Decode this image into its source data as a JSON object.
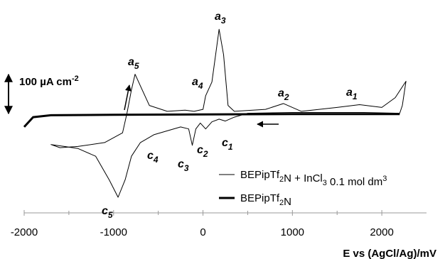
{
  "chart_data": {
    "type": "line",
    "xlabel": "E vs (AgCl/Ag)/mV",
    "xlim": [
      -2000,
      2500
    ],
    "xticks": [
      -2000,
      -1000,
      0,
      1000,
      2000
    ],
    "xminorticks": [
      -1500,
      -500,
      500,
      1500
    ],
    "ylim": [
      -255,
      290
    ],
    "scale_bar": {
      "value": 100,
      "label": "100 µA cm",
      "label_sup": "-2"
    },
    "series": [
      {
        "name": [
          "BEPipTf",
          {
            "sub": "2"
          },
          "N + InCl",
          {
            "sub": "3"
          },
          " 0.1 mol dm",
          {
            "sup": "3"
          }
        ],
        "color": "#000000",
        "width": 1,
        "x": [
          2200,
          1800,
          1000,
          500,
          350,
          250,
          180,
          100,
          30,
          -30,
          -80,
          -120,
          -160,
          -250,
          -400,
          -550,
          -700,
          -800,
          -870,
          -950,
          -1050,
          -1200,
          -1400,
          -1550,
          -1700,
          -1600,
          -1400,
          -1100,
          -900,
          -850,
          -800,
          -760,
          -700,
          -600,
          -400,
          -200,
          -100,
          0,
          30,
          100,
          180,
          230,
          280,
          350,
          700,
          900,
          1100,
          1500,
          1750,
          2000,
          2150,
          2270,
          2230,
          2200
        ],
        "values": [
          0,
          2,
          2,
          0,
          -10,
          -20,
          -15,
          -22,
          -40,
          -25,
          -40,
          -82,
          -40,
          -35,
          -45,
          -55,
          -75,
          -110,
          -170,
          -215,
          -170,
          -110,
          -90,
          -85,
          -80,
          -88,
          -85,
          -75,
          -50,
          0,
          60,
          100,
          70,
          20,
          5,
          8,
          5,
          10,
          45,
          80,
          215,
          150,
          20,
          5,
          10,
          25,
          5,
          15,
          22,
          15,
          40,
          82,
          20,
          0
        ]
      },
      {
        "name": [
          "BEPipTf",
          {
            "sub": "2"
          },
          "N"
        ],
        "color": "#000000",
        "width": 3,
        "x": [
          -2000,
          -1900,
          -1700,
          -1000,
          0,
          1000,
          2200
        ],
        "values": [
          -35,
          -10,
          -5,
          -4,
          -3,
          -2,
          -2
        ]
      }
    ],
    "annotations": [
      {
        "text": "a",
        "sub": "5"
      },
      {
        "text": "a",
        "sub": "3"
      },
      {
        "text": "a",
        "sub": "4"
      },
      {
        "text": "a",
        "sub": "2"
      },
      {
        "text": "a",
        "sub": "1"
      },
      {
        "text": "c",
        "sub": "1"
      },
      {
        "text": "c",
        "sub": "2"
      },
      {
        "text": "c",
        "sub": "3"
      },
      {
        "text": "c",
        "sub": "4"
      },
      {
        "text": "c",
        "sub": "5"
      }
    ]
  }
}
